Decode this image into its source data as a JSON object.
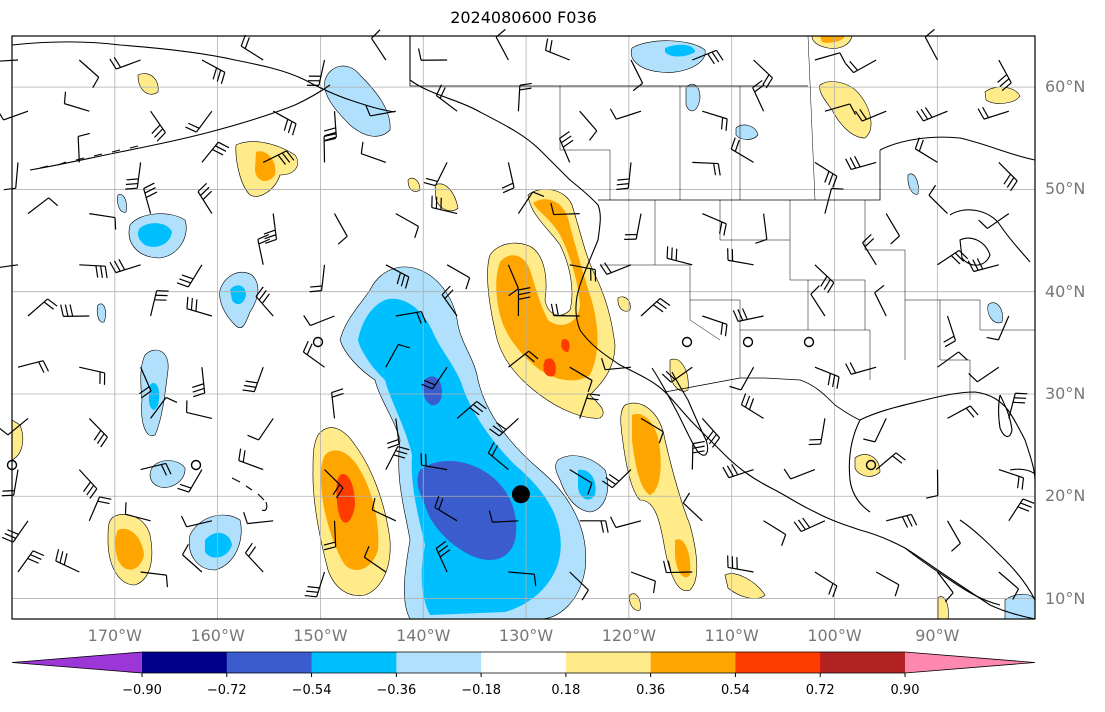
{
  "title": "2024080600 F036",
  "map": {
    "lat_labels": [
      {
        "lat": 60,
        "text": "60°N"
      },
      {
        "lat": 50,
        "text": "50°N"
      },
      {
        "lat": 40,
        "text": "40°N"
      },
      {
        "lat": 30,
        "text": "30°N"
      },
      {
        "lat": 20,
        "text": "20°N"
      },
      {
        "lat": 10,
        "text": "10°N"
      }
    ],
    "lon_labels": [
      {
        "lon": -170,
        "text": "170°W"
      },
      {
        "lon": -160,
        "text": "160°W"
      },
      {
        "lon": -150,
        "text": "150°W"
      },
      {
        "lon": -140,
        "text": "140°W"
      },
      {
        "lon": -130,
        "text": "130°W"
      },
      {
        "lon": -120,
        "text": "120°W"
      },
      {
        "lon": -110,
        "text": "110°W"
      },
      {
        "lon": -100,
        "text": "100°W"
      },
      {
        "lon": -90,
        "text": "90°W"
      }
    ],
    "extent": {
      "lon_min": -180,
      "lon_max": -80.5,
      "lat_min": 8,
      "lat_max": 65
    },
    "center_marker": {
      "lon": -130.5,
      "lat": 20.2
    },
    "colors": {
      "land_line": "#000000",
      "grid": "#b0b0b0"
    }
  },
  "colorbar": {
    "colors": [
      "#9c36d6",
      "#00008b",
      "#3a5ccc",
      "#00bfff",
      "#b0e0fb",
      "#ffffff",
      "#ffeb8a",
      "#ffa500",
      "#ff3c00",
      "#b22222",
      "#ff88b0"
    ],
    "ticks": [
      "−0.90",
      "−0.72",
      "−0.54",
      "−0.36",
      "−0.18",
      "0.18",
      "0.36",
      "0.54",
      "0.72",
      "0.90"
    ]
  }
}
